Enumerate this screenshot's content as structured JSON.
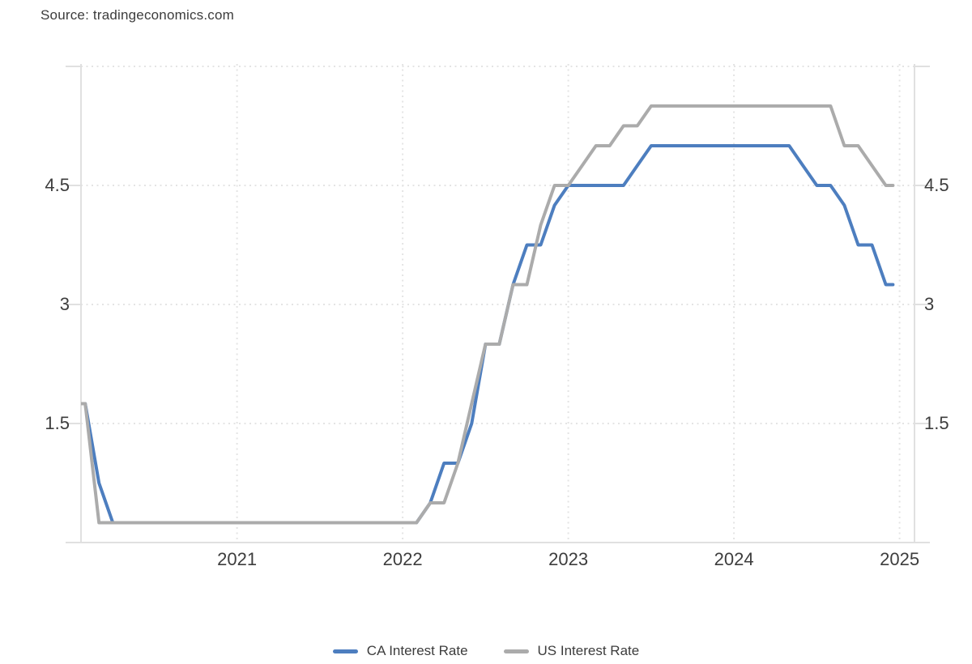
{
  "source_text": "Source: tradingeconomics.com",
  "colors": {
    "ca_line": "#4d7ebf",
    "us_line": "#ababab",
    "grid": "#e4e4e4",
    "axis": "#e0e0e0",
    "text": "#3c3c3c"
  },
  "legend": {
    "items": [
      {
        "label": "CA Interest Rate",
        "series_key": "ca"
      },
      {
        "label": "US Interest Rate",
        "series_key": "us"
      }
    ]
  },
  "chart_data": {
    "type": "line",
    "title": "",
    "source_label": "Source: tradingeconomics.com",
    "x_unit": "month",
    "x_start_year": 2020,
    "x_start_month": 1,
    "xticks": [
      "2021",
      "2022",
      "2023",
      "2024",
      "2025"
    ],
    "yticks": [
      "1.5",
      "3",
      "4.5"
    ],
    "grid_levels": [
      1.5,
      3,
      4.5,
      6
    ],
    "ylim": [
      0,
      6.03
    ],
    "xlim_years": [
      2020.058,
      2025.09
    ],
    "grid_style": "dotted",
    "legend_position": "bottom",
    "series": [
      {
        "name": "CA Interest Rate",
        "color": "#4d7ebf",
        "values": [
          1.75,
          1.75,
          0.75,
          0.25,
          0.25,
          0.25,
          0.25,
          0.25,
          0.25,
          0.25,
          0.25,
          0.25,
          0.25,
          0.25,
          0.25,
          0.25,
          0.25,
          0.25,
          0.25,
          0.25,
          0.25,
          0.25,
          0.25,
          0.25,
          0.25,
          0.25,
          0.5,
          1,
          1,
          1.5,
          2.5,
          2.5,
          3.25,
          3.75,
          3.75,
          4.25,
          4.5,
          4.5,
          4.5,
          4.5,
          4.5,
          4.75,
          5,
          5,
          5,
          5,
          5,
          5,
          5,
          5,
          5,
          5,
          5,
          4.75,
          4.5,
          4.5,
          4.25,
          3.75,
          3.75,
          3.25
        ]
      },
      {
        "name": "US Interest Rate",
        "color": "#ababab",
        "values": [
          1.75,
          1.75,
          0.25,
          0.25,
          0.25,
          0.25,
          0.25,
          0.25,
          0.25,
          0.25,
          0.25,
          0.25,
          0.25,
          0.25,
          0.25,
          0.25,
          0.25,
          0.25,
          0.25,
          0.25,
          0.25,
          0.25,
          0.25,
          0.25,
          0.25,
          0.25,
          0.5,
          0.5,
          1,
          1.75,
          2.5,
          2.5,
          3.25,
          3.25,
          4,
          4.5,
          4.5,
          4.75,
          5,
          5,
          5.25,
          5.25,
          5.5,
          5.5,
          5.5,
          5.5,
          5.5,
          5.5,
          5.5,
          5.5,
          5.5,
          5.5,
          5.5,
          5.5,
          5.5,
          5.5,
          5,
          5,
          4.75,
          4.5
        ]
      }
    ],
    "last_values": {
      "ca": 3.25,
      "us": 4.5
    }
  }
}
